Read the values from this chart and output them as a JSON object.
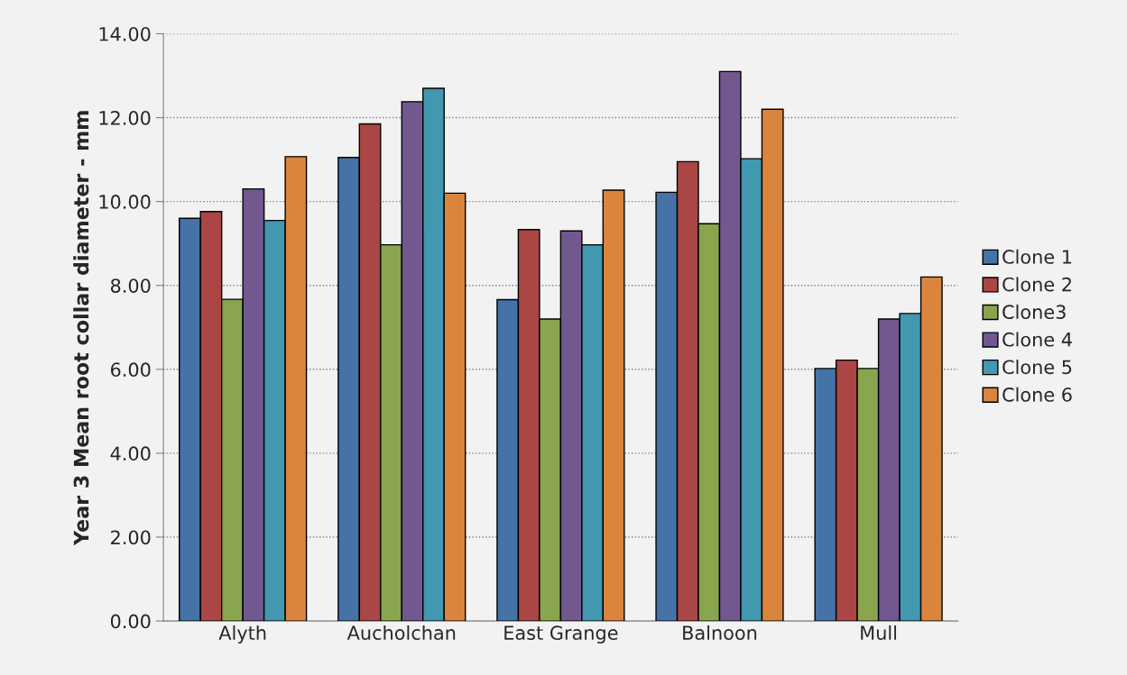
{
  "chart_data": {
    "type": "bar",
    "ylabel": "Year 3 Mean root collar diameter - mm",
    "categories": [
      "Alyth",
      "Aucholchan",
      "East Grange",
      "Balnoon",
      "Mull"
    ],
    "series": [
      {
        "name": "Clone 1",
        "color": "#4572a7",
        "values": [
          9.6,
          11.05,
          7.66,
          10.22,
          6.02
        ]
      },
      {
        "name": "Clone 2",
        "color": "#aa4643",
        "values": [
          9.76,
          11.85,
          9.33,
          10.95,
          6.22
        ]
      },
      {
        "name": "Clone3",
        "color": "#89a54e",
        "values": [
          7.67,
          8.97,
          7.2,
          9.47,
          6.02
        ]
      },
      {
        "name": "Clone 4",
        "color": "#71588f",
        "values": [
          10.3,
          12.38,
          9.3,
          13.1,
          7.2
        ]
      },
      {
        "name": "Clone 5",
        "color": "#4198af",
        "values": [
          9.55,
          12.7,
          8.97,
          11.02,
          7.33
        ]
      },
      {
        "name": "Clone 6",
        "color": "#db843d",
        "values": [
          11.07,
          10.2,
          10.27,
          12.2,
          8.2
        ]
      }
    ],
    "ylim": [
      0,
      14
    ],
    "yticks": [
      {
        "value": 0,
        "label": "0.00"
      },
      {
        "value": 2,
        "label": "2.00"
      },
      {
        "value": 4,
        "label": "4.00"
      },
      {
        "value": 6,
        "label": "6.00"
      },
      {
        "value": 8,
        "label": "8.00"
      },
      {
        "value": 10,
        "label": "10.00"
      },
      {
        "value": 12,
        "label": "12.00"
      },
      {
        "value": 14,
        "label": "14.00"
      }
    ],
    "grid": "y",
    "legend": "right"
  }
}
